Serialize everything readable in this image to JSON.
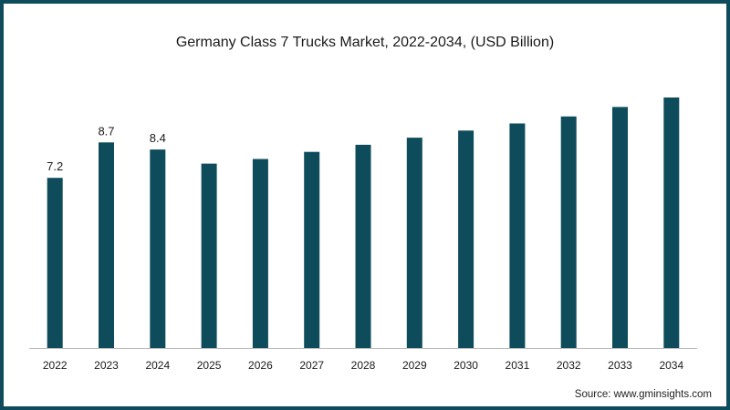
{
  "chart_data": {
    "type": "bar",
    "title": "Germany Class 7 Trucks Market, 2022-2034, (USD Billion)",
    "xlabel": "",
    "ylabel": "",
    "categories": [
      "2022",
      "2023",
      "2024",
      "2025",
      "2026",
      "2027",
      "2028",
      "2029",
      "2030",
      "2031",
      "2032",
      "2033",
      "2034"
    ],
    "values": [
      7.2,
      8.7,
      8.4,
      7.8,
      8.0,
      8.3,
      8.6,
      8.9,
      9.2,
      9.5,
      9.8,
      10.2,
      10.6
    ],
    "data_labels": [
      "7.2",
      "8.7",
      "8.4",
      "",
      "",
      "",
      "",
      "",
      "",
      "",
      "",
      "",
      ""
    ],
    "ylim": [
      0,
      10.6
    ],
    "grid": false,
    "legend": "none",
    "bar_color": "#0e4c5c"
  },
  "source": "Source: www.gminsights.com",
  "colors": {
    "frame": "#0e4c5c",
    "axis": "#bdbdbd"
  }
}
